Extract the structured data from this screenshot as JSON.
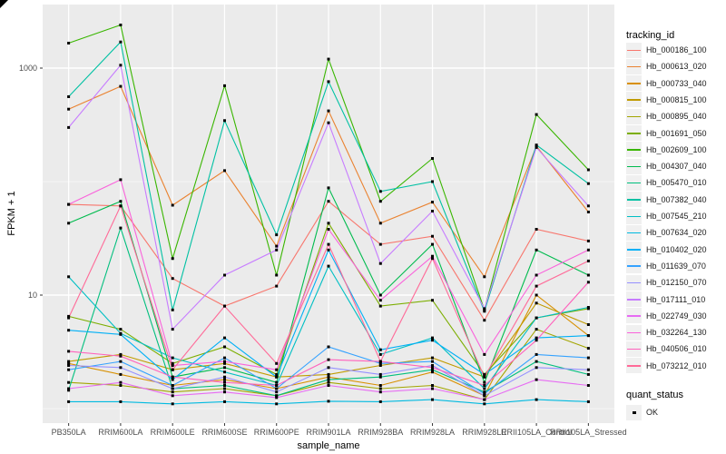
{
  "chart_data": {
    "type": "line",
    "title": "",
    "xlabel": "sample_name",
    "ylabel": "FPKM + 1",
    "y_scale": "log10",
    "ylim": [
      0.75,
      3600
    ],
    "y_ticks": [
      10,
      1000
    ],
    "y_minor_ticks": [
      1,
      100
    ],
    "grid": "on",
    "panel_background": "#EBEBEB",
    "gridline_color": "#FFFFFF",
    "point_color": "#000000",
    "legend_title": "tracking_id",
    "quant_legend": {
      "title": "quant_status",
      "items": [
        "OK"
      ]
    },
    "categories": [
      "PB350LA",
      "RRIM600LA",
      "RRIM600LE",
      "RRIM600SE",
      "RRIM600PE",
      "RRIM901LA",
      "RRIM928BA",
      "RRIM928LA",
      "RRIM928LE",
      "RRII105LA_Control",
      "RRII105LA_Stressed"
    ],
    "series": [
      {
        "name": "Hb_000186_100",
        "color": "#F8766D",
        "values": [
          63,
          61,
          14,
          8.0,
          12,
          67,
          28,
          33,
          6.0,
          38,
          30
        ]
      },
      {
        "name": "Hb_000613_020",
        "color": "#EA8331",
        "values": [
          435,
          690,
          62,
          125,
          27,
          420,
          43,
          66,
          14.5,
          205,
          54
        ]
      },
      {
        "name": "Hb_000733_040",
        "color": "#D89000",
        "values": [
          2.5,
          2.0,
          1.6,
          1.8,
          1.5,
          1.9,
          1.6,
          2.1,
          1.3,
          10,
          4.4
        ]
      },
      {
        "name": "Hb_000815_100",
        "color": "#C09B00",
        "values": [
          2.6,
          3.0,
          2.2,
          2.5,
          1.9,
          2.0,
          2.4,
          2.8,
          1.9,
          8.5,
          5.5
        ]
      },
      {
        "name": "Hb_000895_040",
        "color": "#A3A500",
        "values": [
          1.7,
          1.6,
          1.4,
          1.5,
          1.3,
          1.7,
          1.5,
          1.6,
          1.2,
          5.0,
          3.4
        ]
      },
      {
        "name": "Hb_001691_050",
        "color": "#7CAE00",
        "values": [
          6.5,
          5.0,
          2.5,
          3.5,
          2.0,
          43,
          8.0,
          9.0,
          2.0,
          6.3,
          7.6
        ]
      },
      {
        "name": "Hb_002609_100",
        "color": "#39B600",
        "values": [
          1660,
          2400,
          21,
          700,
          15,
          1200,
          67,
          160,
          7.4,
          390,
          127
        ]
      },
      {
        "name": "Hb_004307_040",
        "color": "#00BB4E",
        "values": [
          43,
          67,
          1.9,
          2.3,
          1.7,
          88,
          10,
          28,
          1.7,
          25,
          15
        ]
      },
      {
        "name": "Hb_005470_010",
        "color": "#00BF7D",
        "values": [
          1.45,
          39,
          1.5,
          1.6,
          1.3,
          1.8,
          1.9,
          2.2,
          1.4,
          2.6,
          2.0
        ]
      },
      {
        "name": "Hb_007382_040",
        "color": "#00C1A3",
        "values": [
          560,
          1700,
          7.4,
          345,
          34,
          760,
          82,
          100,
          7.2,
          210,
          96
        ]
      },
      {
        "name": "Hb_007545_210",
        "color": "#00BFC4",
        "values": [
          14.5,
          4.6,
          2.8,
          2.1,
          1.6,
          18,
          3.0,
          4.2,
          1.5,
          6.3,
          7.8
        ]
      },
      {
        "name": "Hb_007634_020",
        "color": "#00BAE0",
        "values": [
          1.15,
          1.15,
          1.1,
          1.15,
          1.1,
          1.16,
          1.15,
          1.2,
          1.1,
          1.2,
          1.15
        ]
      },
      {
        "name": "Hb_010402_020",
        "color": "#00B0F6",
        "values": [
          4.9,
          4.5,
          1.8,
          4.2,
          1.9,
          25,
          3.3,
          4.0,
          2.0,
          4.2,
          4.4
        ]
      },
      {
        "name": "Hb_011639_070",
        "color": "#35A2FF",
        "values": [
          2.2,
          2.6,
          1.6,
          2.8,
          1.5,
          3.5,
          2.5,
          2.6,
          1.35,
          3.0,
          2.8
        ]
      },
      {
        "name": "Hb_012150_070",
        "color": "#9590FF",
        "values": [
          2.4,
          2.3,
          1.5,
          1.9,
          1.4,
          2.3,
          2.0,
          2.4,
          1.3,
          2.3,
          2.2
        ]
      },
      {
        "name": "Hb_017111_010",
        "color": "#C77CFF",
        "values": [
          300,
          1060,
          5.0,
          15,
          25,
          330,
          19,
          55,
          7.6,
          200,
          61
        ]
      },
      {
        "name": "Hb_022749_030",
        "color": "#E76BF3",
        "values": [
          1.5,
          1.7,
          1.3,
          1.4,
          1.25,
          1.6,
          1.4,
          1.5,
          1.2,
          1.8,
          1.6
        ]
      },
      {
        "name": "Hb_032264_130",
        "color": "#FA62DB",
        "values": [
          63,
          104,
          2.4,
          2.6,
          2.2,
          38,
          9.0,
          22,
          3.0,
          15,
          25
        ]
      },
      {
        "name": "Hb_040506_010",
        "color": "#FF62BC",
        "values": [
          3.2,
          2.9,
          1.9,
          1.7,
          1.6,
          2.7,
          2.6,
          2.3,
          1.6,
          4.0,
          13
        ]
      },
      {
        "name": "Hb_073212_010",
        "color": "#FF6A98",
        "values": [
          6.3,
          61,
          2.2,
          8.0,
          2.5,
          28,
          2.6,
          21,
          1.9,
          12,
          20
        ]
      }
    ]
  }
}
